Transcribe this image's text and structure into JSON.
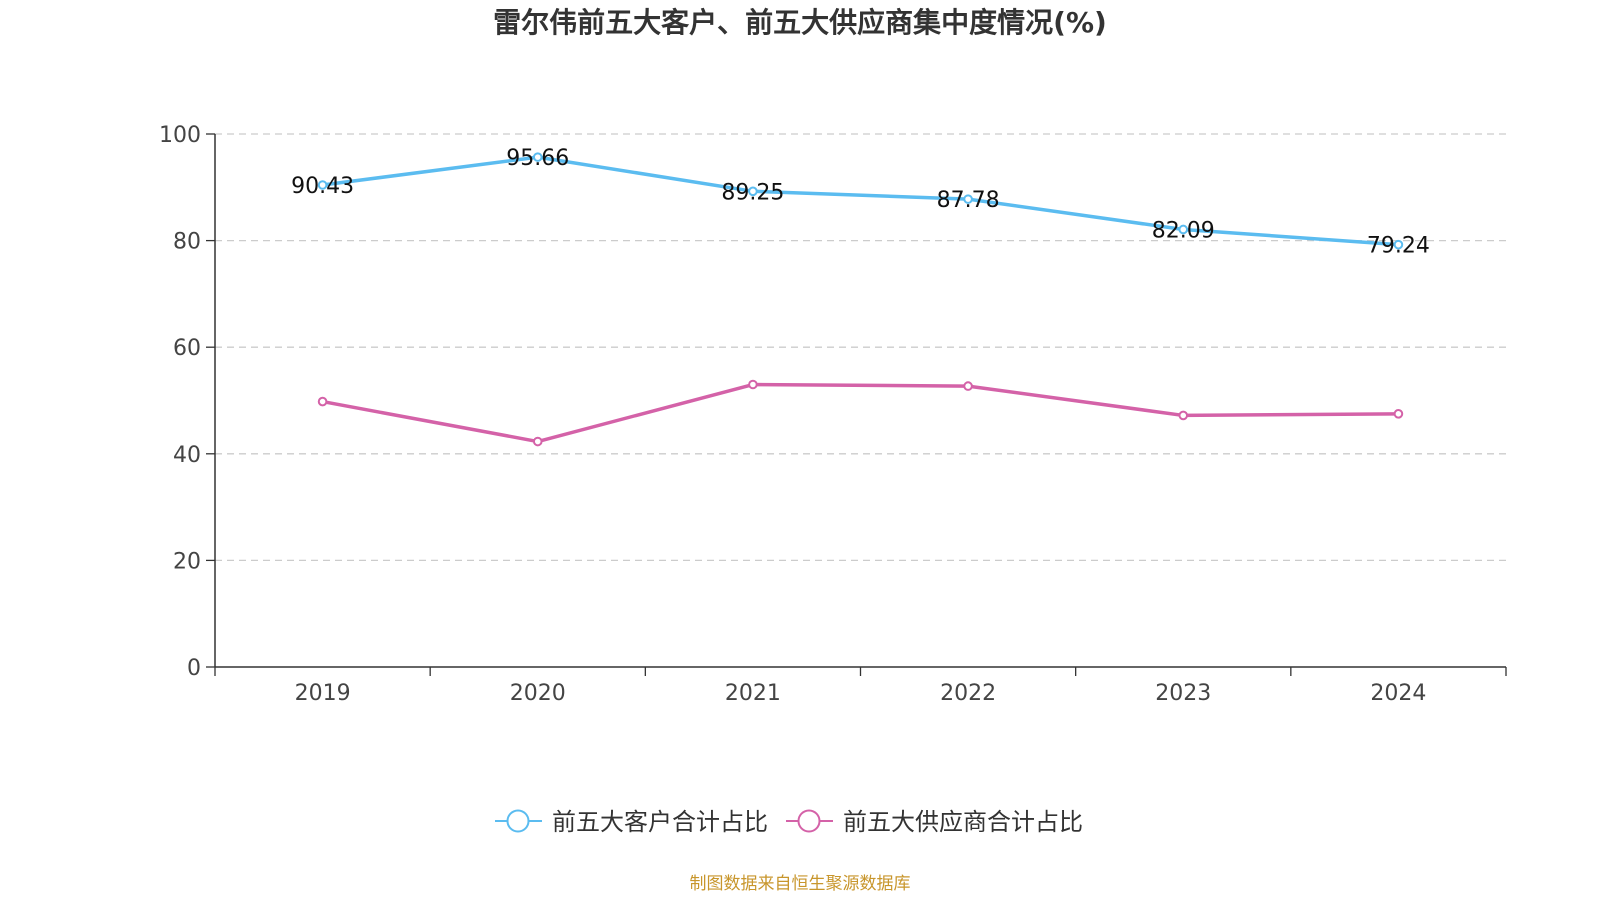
{
  "chart_data": {
    "type": "line",
    "title": "雷尔伟前五大客户、前五大供应商集中度情况(%)",
    "categories": [
      "2019",
      "2020",
      "2021",
      "2022",
      "2023",
      "2024"
    ],
    "ylim": [
      0,
      100
    ],
    "yticks": [
      "0",
      "20",
      "40",
      "60",
      "80",
      "100"
    ],
    "grid": true,
    "legend_position": "bottom-center",
    "series": [
      {
        "name": "前五大客户合计占比",
        "color": "#5bbcf0",
        "values": [
          90.43,
          95.66,
          89.25,
          87.78,
          82.09,
          79.24
        ],
        "labels": [
          "90.43",
          "95.66",
          "89.25",
          "87.78",
          "82.09",
          "79.24"
        ]
      },
      {
        "name": "前五大供应商合计占比",
        "color": "#d462a8",
        "values": [
          49.8,
          42.3,
          53.0,
          52.7,
          47.2,
          47.5
        ]
      }
    ],
    "source": "制图数据来自恒生聚源数据库",
    "source_color": "#c8962c"
  }
}
